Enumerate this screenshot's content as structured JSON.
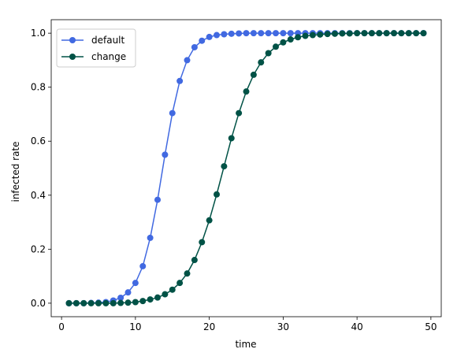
{
  "chart_data": {
    "type": "line",
    "xlabel": "time",
    "ylabel": "infected rate",
    "xlim": [
      -1.4,
      51.4
    ],
    "ylim": [
      -0.05,
      1.05
    ],
    "xticks": [
      0,
      10,
      20,
      30,
      40,
      50
    ],
    "yticks": [
      0.0,
      0.2,
      0.4,
      0.6,
      0.8,
      1.0
    ],
    "xtick_labels": [
      "0",
      "10",
      "20",
      "30",
      "40",
      "50"
    ],
    "ytick_labels": [
      "0.0",
      "0.2",
      "0.4",
      "0.6",
      "0.8",
      "1.0"
    ],
    "grid": false,
    "legend_position": "upper-left",
    "x": [
      1,
      2,
      3,
      4,
      5,
      6,
      7,
      8,
      9,
      10,
      11,
      12,
      13,
      14,
      15,
      16,
      17,
      18,
      19,
      20,
      21,
      22,
      23,
      24,
      25,
      26,
      27,
      28,
      29,
      30,
      31,
      32,
      33,
      34,
      35,
      36,
      37,
      38,
      39,
      40,
      41,
      42,
      43,
      44,
      45,
      46,
      47,
      48,
      49
    ],
    "series": [
      {
        "name": "default",
        "color": "#4169e1",
        "values": [
          0.0,
          0.0,
          0.0,
          0.001,
          0.002,
          0.004,
          0.01,
          0.02,
          0.04,
          0.075,
          0.137,
          0.242,
          0.383,
          0.55,
          0.704,
          0.823,
          0.9,
          0.948,
          0.972,
          0.986,
          0.993,
          0.996,
          0.998,
          0.999,
          1.0,
          1.0,
          1.0,
          1.0,
          1.0,
          1.0,
          1.0,
          1.0,
          1.0,
          1.0,
          1.0,
          1.0,
          1.0,
          1.0,
          1.0,
          1.0,
          1.0,
          1.0,
          1.0,
          1.0,
          1.0,
          1.0,
          1.0,
          1.0,
          1.0
        ]
      },
      {
        "name": "change",
        "color": "#005246",
        "values": [
          0.0,
          0.0,
          0.0,
          0.0,
          0.0,
          0.0,
          0.0,
          0.001,
          0.002,
          0.004,
          0.008,
          0.014,
          0.021,
          0.033,
          0.05,
          0.075,
          0.11,
          0.16,
          0.226,
          0.307,
          0.403,
          0.507,
          0.611,
          0.704,
          0.784,
          0.846,
          0.892,
          0.926,
          0.95,
          0.966,
          0.977,
          0.985,
          0.99,
          0.993,
          0.995,
          0.997,
          0.998,
          0.999,
          0.999,
          1.0,
          1.0,
          1.0,
          1.0,
          1.0,
          1.0,
          1.0,
          1.0,
          1.0,
          1.0
        ]
      }
    ]
  }
}
